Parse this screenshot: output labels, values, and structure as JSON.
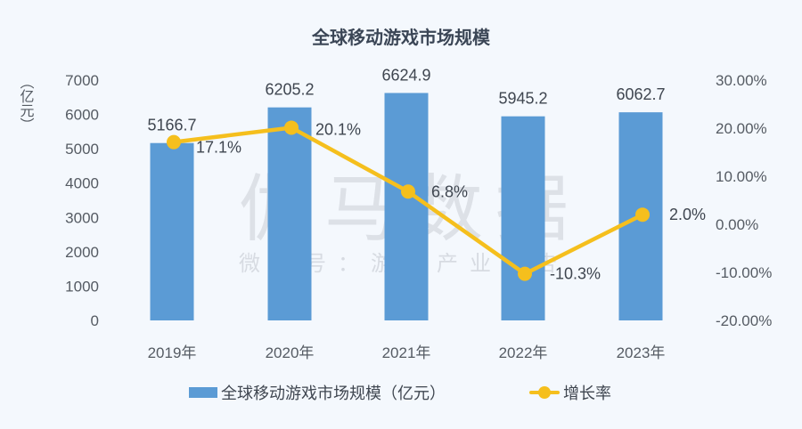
{
  "title": "全球移动游戏市场规模",
  "unit_label": "（亿元）",
  "watermark": {
    "main": "伽马数据",
    "sub": "微信号：游戏产业报告"
  },
  "colors": {
    "bar": "#5b9bd5",
    "line": "#f5bf1d",
    "background": "#f4f8fd",
    "title": "#3b4656"
  },
  "legend": {
    "bar_label": "全球移动游戏市场规模（亿元）",
    "line_label": "增长率"
  },
  "axes": {
    "left_ticks": [
      "0",
      "1000",
      "2000",
      "3000",
      "4000",
      "5000",
      "6000",
      "7000"
    ],
    "right_ticks": [
      "-20.00%",
      "-10.00%",
      "0.00%",
      "10.00%",
      "20.00%",
      "30.00%"
    ],
    "x_ticks": [
      "2019年",
      "2020年",
      "2021年",
      "2022年",
      "2023年"
    ]
  },
  "chart_data": {
    "type": "bar",
    "title": "全球移动游戏市场规模",
    "xlabel": "",
    "ylabel": "亿元",
    "y2label": "增长率",
    "categories": [
      "2019年",
      "2020年",
      "2021年",
      "2022年",
      "2023年"
    ],
    "series": [
      {
        "name": "全球移动游戏市场规模（亿元）",
        "type": "bar",
        "axis": "left",
        "values": [
          5166.7,
          6205.2,
          6624.9,
          5945.2,
          6062.7
        ],
        "labels": [
          "5166.7",
          "6205.2",
          "6624.9",
          "5945.2",
          "6062.7"
        ]
      },
      {
        "name": "增长率",
        "type": "line",
        "axis": "right",
        "values": [
          17.1,
          20.1,
          6.8,
          -10.3,
          2.0
        ],
        "labels": [
          "17.1%",
          "20.1%",
          "6.8%",
          "-10.3%",
          "2.0%"
        ]
      }
    ],
    "ylim": [
      0,
      7000
    ],
    "y2lim": [
      -20,
      30
    ],
    "grid": false,
    "legend_position": "bottom"
  }
}
